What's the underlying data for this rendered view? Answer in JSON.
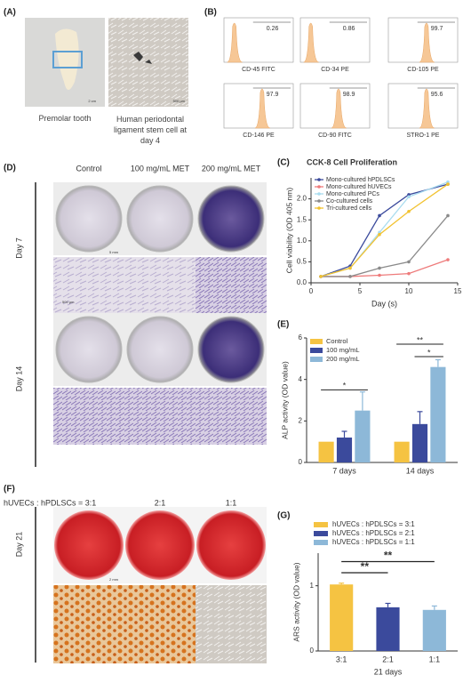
{
  "panels": {
    "A": {
      "label": "(A)",
      "scale_bars": [
        "2 cm",
        "500 µm"
      ],
      "captions": [
        "Premolar tooth",
        "Human periodontal ligament stem cell at day 4"
      ]
    },
    "B": {
      "label": "(B)",
      "histograms": [
        {
          "marker": "CD-45 FITC",
          "percent": 0.26
        },
        {
          "marker": "CD-34 PE",
          "percent": 0.86
        },
        {
          "marker": "CD-105 PE",
          "percent": 99.7
        },
        {
          "marker": "CD-146 PE",
          "percent": 97.9
        },
        {
          "marker": "CD-90 FITC",
          "percent": 98.9
        },
        {
          "marker": "STRO-1 PE",
          "percent": 95.6
        }
      ]
    },
    "D": {
      "label": "(D)",
      "columns": [
        "Control",
        "100 mg/mL MET",
        "200 mg/mL MET"
      ],
      "rows": [
        "Day 7",
        "Day 14"
      ],
      "scale_bars": [
        "5 mm",
        "500 µm"
      ]
    },
    "F": {
      "label": "(F)",
      "columns": [
        "hUVECs : hPDLSCs = 3:1",
        "2:1",
        "1:1"
      ],
      "rows": [
        "Day 21"
      ],
      "scale_bars": [
        "2 mm"
      ]
    }
  },
  "chart_data": [
    {
      "label": "(C)",
      "type": "line",
      "title": "CCK-8 Cell Proliferation",
      "xlabel": "Day (s)",
      "ylabel": "Cell viability (OD 405 nm)",
      "x": [
        1,
        4,
        7,
        10,
        14
      ],
      "xlim": [
        0,
        15
      ],
      "xticks": [
        0,
        5,
        10,
        15
      ],
      "ylim": [
        0,
        2.5
      ],
      "yticks": [
        {
          "value": 0,
          "label": "0.0"
        },
        {
          "value": 0.5,
          "label": "0.5"
        },
        {
          "value": 1,
          "label": "1.0"
        },
        {
          "value": 1.5,
          "label": "1.5"
        },
        {
          "value": 2,
          "label": "2.0"
        }
      ],
      "legend": "upper left",
      "series": [
        {
          "name": "Mono-cultured hPDLSCs",
          "color": "#3b4a9c",
          "values": [
            0.15,
            0.4,
            1.6,
            2.1,
            2.35
          ]
        },
        {
          "name": "Mono-cultured hUVECs",
          "color": "#ee7b7b",
          "values": [
            0.15,
            0.15,
            0.18,
            0.22,
            0.55
          ]
        },
        {
          "name": "Mono-cultured PCs",
          "color": "#a9dcef",
          "values": [
            0.15,
            0.35,
            1.2,
            2.05,
            2.4
          ]
        },
        {
          "name": "Co-cultured cells",
          "color": "#8a8a8a",
          "values": [
            0.15,
            0.15,
            0.35,
            0.5,
            1.6
          ]
        },
        {
          "name": "Tri-cultured cells",
          "color": "#f2c230",
          "values": [
            0.15,
            0.35,
            1.15,
            1.7,
            2.35
          ]
        }
      ]
    },
    {
      "label": "(E)",
      "type": "bar",
      "ylabel": "ALP activity (OD value)",
      "categories": [
        "7 days",
        "14 days"
      ],
      "ylim": [
        0,
        6
      ],
      "yticks": [
        0,
        2,
        4,
        6
      ],
      "legend": "upper left",
      "annotations": [
        "*",
        "**",
        "*"
      ],
      "series": [
        {
          "name": "Control",
          "color": "#f5c342",
          "values": [
            1,
            1
          ]
        },
        {
          "name": "100 mg/mL",
          "color": "#3b4a9c",
          "values": [
            1.2,
            1.85
          ],
          "errors": [
            0.3,
            0.6
          ]
        },
        {
          "name": "200 mg/mL",
          "color": "#8db8d8",
          "values": [
            2.5,
            4.6
          ],
          "errors": [
            0.9,
            0.35
          ]
        }
      ]
    },
    {
      "label": "(G)",
      "type": "bar",
      "xlabel": "21 days",
      "ylabel": "ARS activity (OD value)",
      "categories": [
        "3:1",
        "2:1",
        "1:1"
      ],
      "values": [
        1.02,
        0.67,
        0.63
      ],
      "errors": [
        0.02,
        0.06,
        0.06
      ],
      "colors": [
        "#f5c342",
        "#3b4a9c",
        "#8db8d8"
      ],
      "legend_labels": [
        "hUVECs : hPDLSCs = 3:1",
        "hUVECs : hPDLSCs = 2:1",
        "hUVECs : hPDLSCs = 1:1"
      ],
      "ylim": [
        0,
        1.5
      ],
      "yticks": [
        0,
        1
      ],
      "legend": "top",
      "annotations": [
        "**",
        "**"
      ]
    }
  ]
}
